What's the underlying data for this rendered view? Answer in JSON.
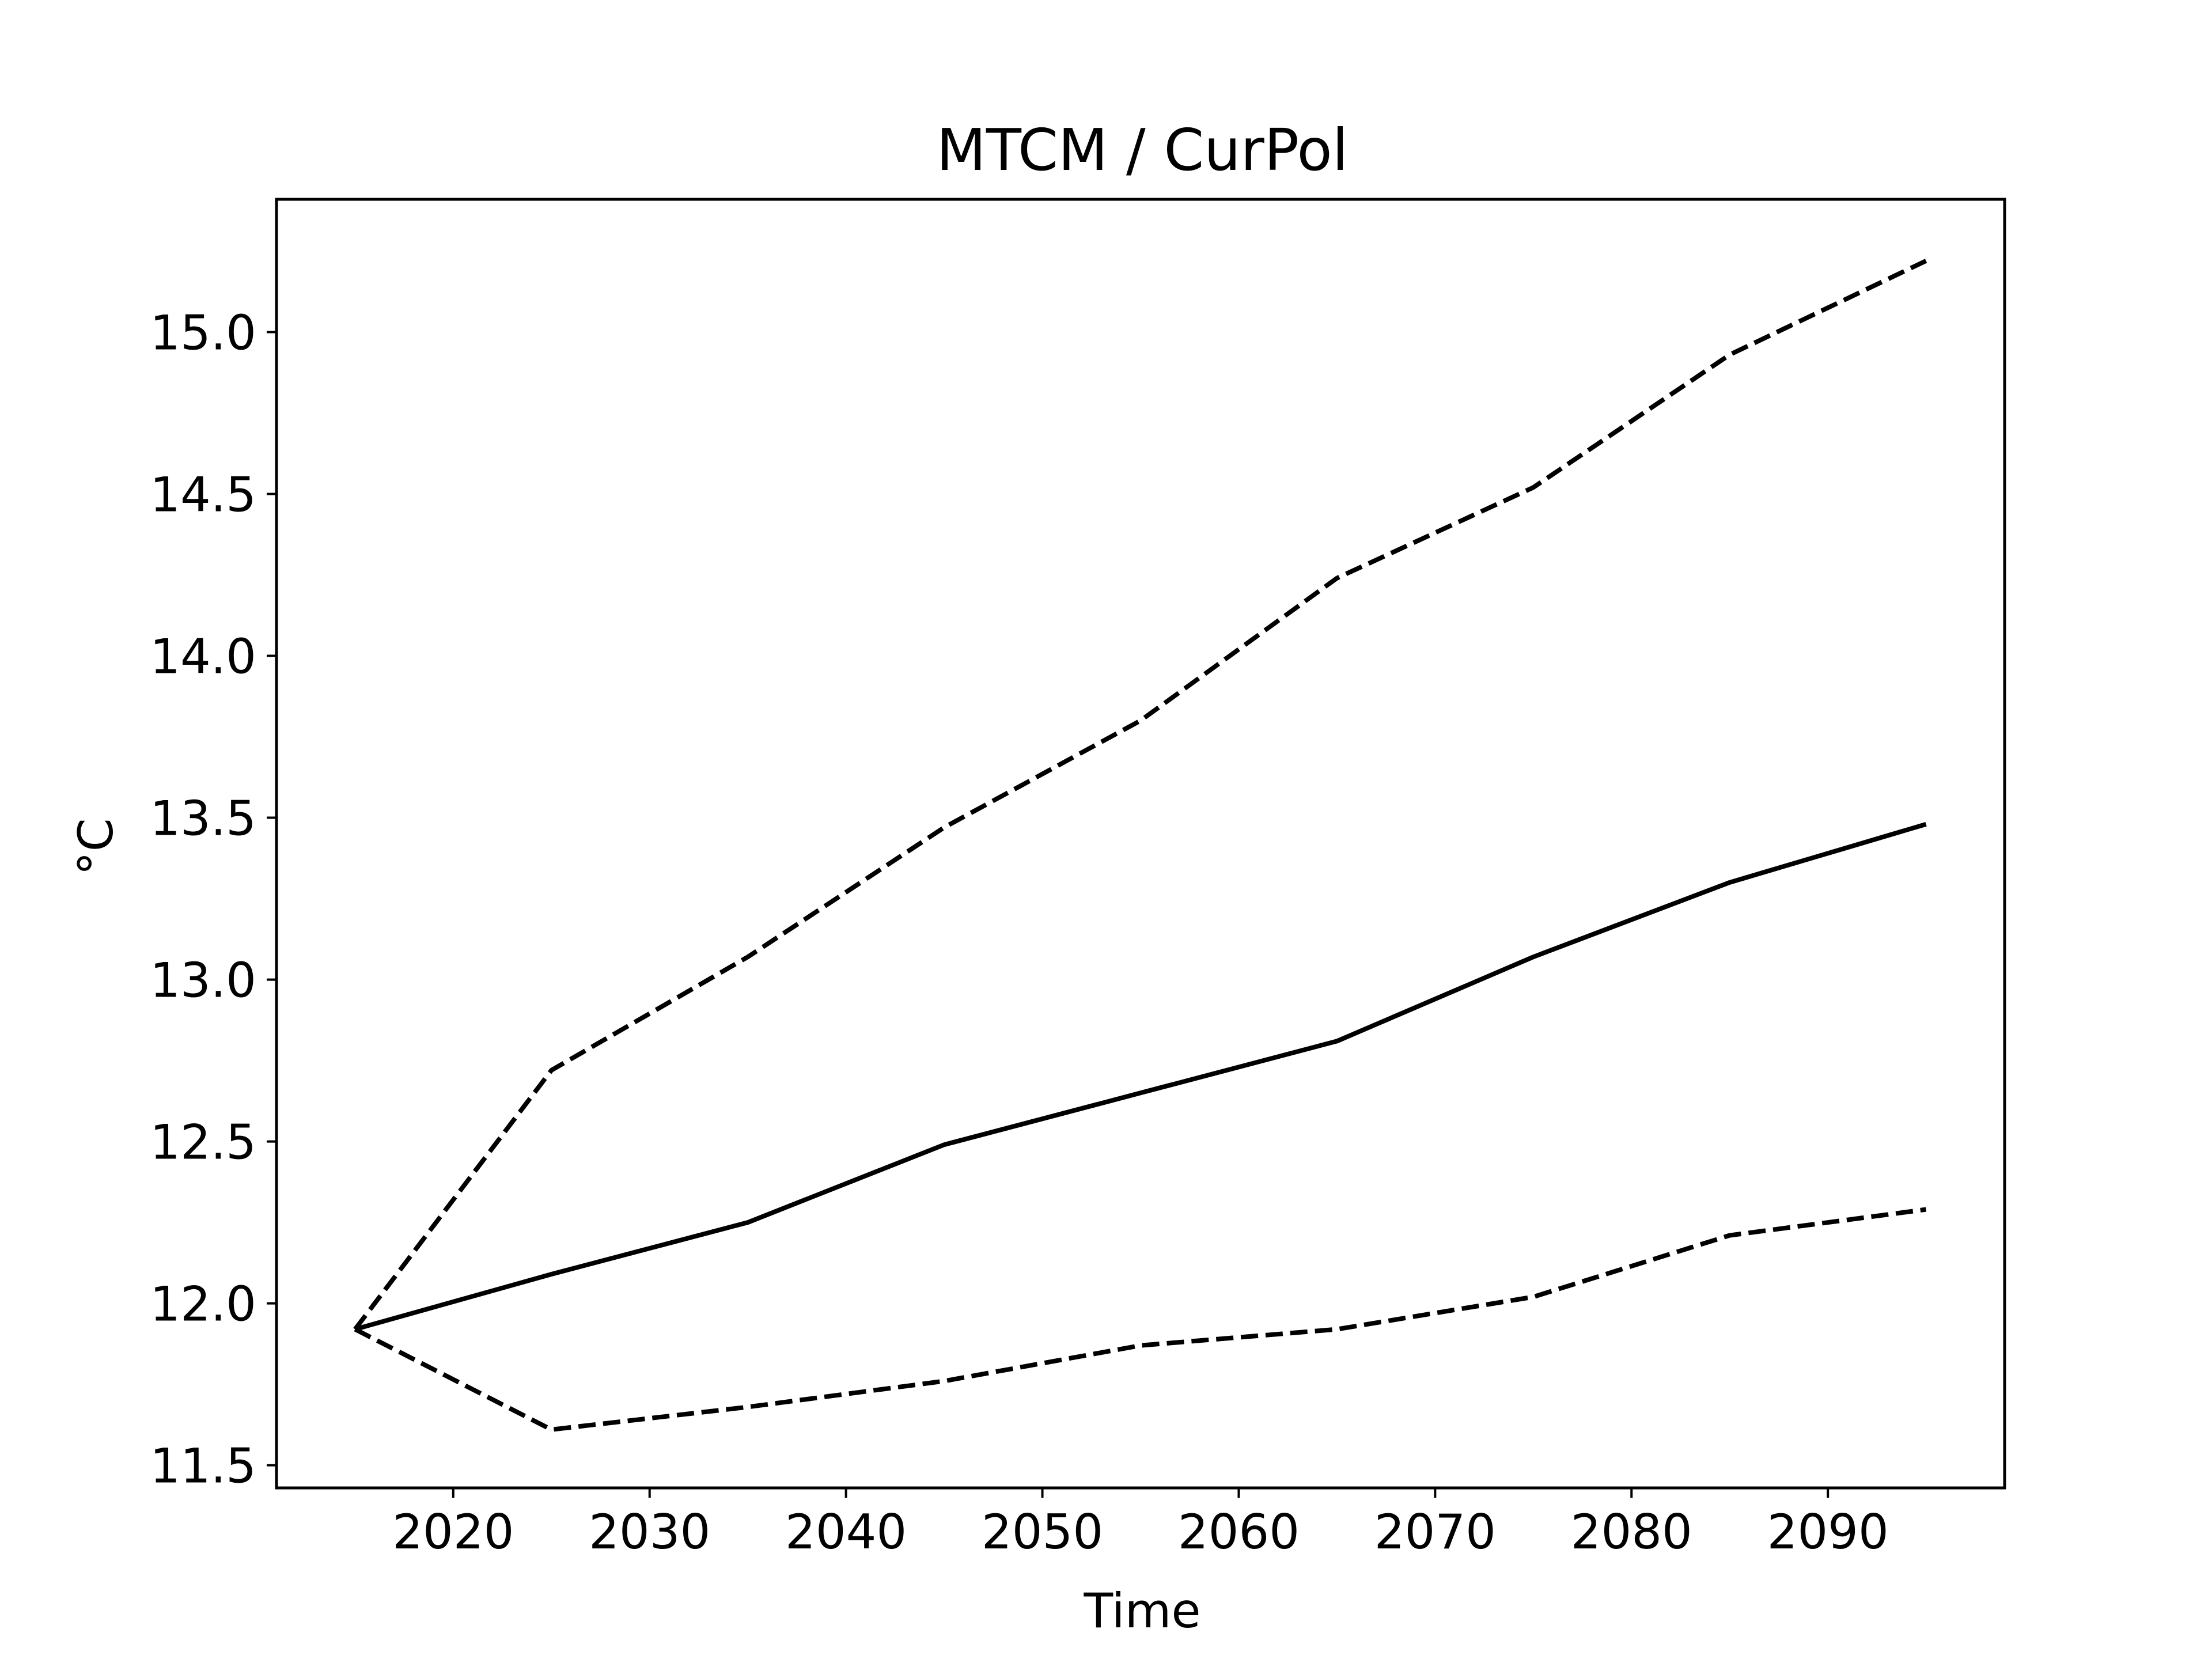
{
  "chart_data": {
    "type": "line",
    "title": "MTCM / CurPol",
    "xlabel": "Time",
    "ylabel": "°C",
    "xlim": [
      2011,
      2099
    ],
    "ylim": [
      11.43,
      15.41
    ],
    "xticks": [
      2020,
      2030,
      2040,
      2050,
      2060,
      2070,
      2080,
      2090
    ],
    "xtick_labels": [
      "2020",
      "2030",
      "2040",
      "2050",
      "2060",
      "2070",
      "2080",
      "2090"
    ],
    "yticks": [
      11.5,
      12.0,
      12.5,
      13.0,
      13.5,
      14.0,
      14.5,
      15.0
    ],
    "ytick_labels": [
      "11.5",
      "12.0",
      "12.5",
      "13.0",
      "13.5",
      "14.0",
      "14.5",
      "15.0"
    ],
    "grid": false,
    "legend": "none",
    "x": [
      2015,
      2025,
      2035,
      2045,
      2055,
      2065,
      2075,
      2085,
      2095
    ],
    "series": [
      {
        "line_style": "solid",
        "color": "#000000",
        "values": [
          11.92,
          12.09,
          12.25,
          12.49,
          12.65,
          12.81,
          13.07,
          13.3,
          13.48
        ]
      },
      {
        "line_style": "dashed",
        "color": "#000000",
        "values": [
          11.92,
          12.72,
          13.07,
          13.47,
          13.8,
          14.24,
          14.52,
          14.93,
          15.22
        ]
      },
      {
        "line_style": "dashed",
        "color": "#000000",
        "values": [
          11.92,
          11.61,
          11.68,
          11.76,
          11.87,
          11.92,
          12.02,
          12.21,
          12.29
        ]
      }
    ]
  }
}
